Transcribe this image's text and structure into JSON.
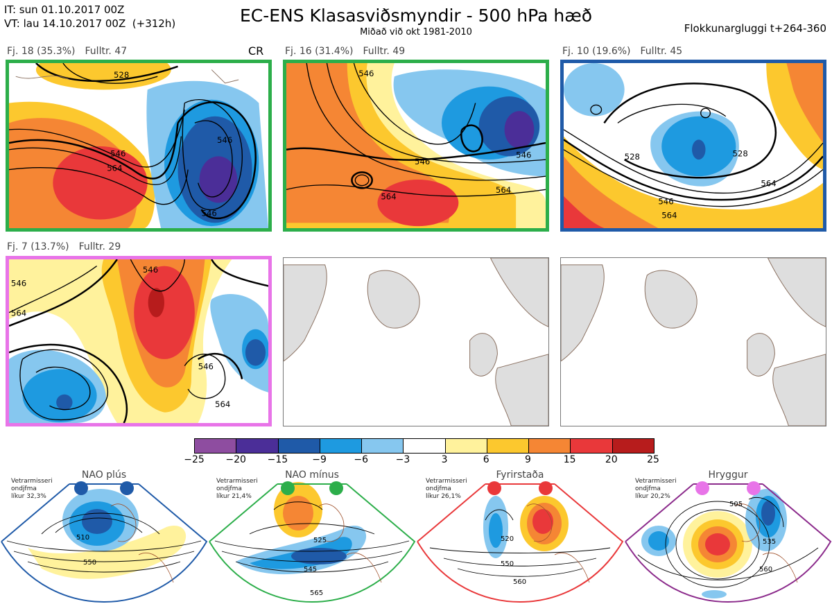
{
  "header": {
    "it_line": "IT: sun 01.10.2017 00Z",
    "vt_line": "VT: lau 14.10.2017 00Z  (+312h)",
    "title": "EC-ENS Klasasviðsmyndir - 500 hPa hæð",
    "subtitle": "Miðað við okt 1981-2010",
    "window": "Flokkunargluggi t+264-360"
  },
  "panels": [
    {
      "label": "Fj. 18 (35.3%)",
      "members": "Fulltr. 47",
      "border_color": "#2cae4a",
      "extra": "CR",
      "contours": [
        "528",
        "546",
        "564",
        "546",
        "546"
      ]
    },
    {
      "label": "Fj. 16 (31.4%)",
      "members": "Fulltr. 49",
      "border_color": "#2cae4a",
      "contours": [
        "546",
        "546",
        "564",
        "564",
        "546"
      ]
    },
    {
      "label": "Fj. 10 (19.6%)",
      "members": "Fulltr. 45",
      "border_color": "#1f5aa8",
      "contours": [
        "528",
        "528",
        "546",
        "564",
        "564"
      ]
    },
    {
      "label": "Fj. 7 (13.7%)",
      "members": "Fulltr. 29",
      "border_color": "#e874e8",
      "contours": [
        "546",
        "564",
        "546",
        "564",
        "546"
      ]
    }
  ],
  "colorbar": {
    "colors": [
      "#8e4da0",
      "#4b2e98",
      "#1f5aa8",
      "#1e9ae0",
      "#86c7ef",
      "#ffffff",
      "#fff29c",
      "#fcc82e",
      "#f58634",
      "#e9383a",
      "#b71c1c"
    ],
    "labels": [
      "−25",
      "−20",
      "−15",
      "−9",
      "−6",
      "−3",
      "3",
      "6",
      "9",
      "15",
      "20",
      "25"
    ]
  },
  "regimes": [
    {
      "name": "NAO plús",
      "stat_line1": "Vetrarmisseri",
      "stat_line2": "ondjfma",
      "stat_line3": "líkur 32,3%",
      "color": "#1f5aa8",
      "contours": [
        "510",
        "550"
      ]
    },
    {
      "name": "NAO mínus",
      "stat_line1": "Vetrarmisseri",
      "stat_line2": "ondjfma",
      "stat_line3": "líkur 21,4%",
      "color": "#2cae4a",
      "contours": [
        "525",
        "545",
        "565"
      ]
    },
    {
      "name": "Fyrirstaða",
      "stat_line1": "Vetrarmisseri",
      "stat_line2": "ondjfma",
      "stat_line3": "líkur 26,1%",
      "color": "#e9383a",
      "contours": [
        "520",
        "550",
        "560"
      ]
    },
    {
      "name": "Hryggur",
      "stat_line1": "Vetrarmisseri",
      "stat_line2": "ondjfma",
      "stat_line3": "líkur 20,2%",
      "color": "#e874e8",
      "contours": [
        "505",
        "535",
        "560"
      ]
    }
  ]
}
